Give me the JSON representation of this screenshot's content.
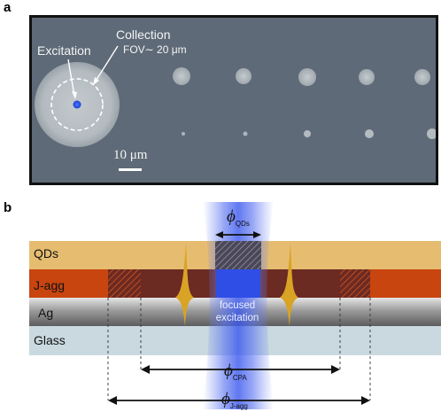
{
  "panel_a": {
    "label": "a",
    "excitation": "Excitation",
    "collection": "Collection",
    "fov": "FOV∼ 20 μm",
    "scale_bar": "10 μm"
  },
  "panel_b": {
    "label": "b",
    "layers": [
      "QDs",
      "J-agg",
      "Ag",
      "Glass"
    ],
    "beam_text_line1": "focused",
    "beam_text_line2": "excitation",
    "phi_symbol": "ϕ",
    "phi_qds_sub": "QDs",
    "phi_cpa_sub": "CPA",
    "phi_jagg_sub": "J-agg"
  },
  "colors": {
    "qds_layer": "#e6bd70",
    "jagg_layer": "#c8450f",
    "jagg_disk": "#6b2a22",
    "ag_layer": "#9a9a9a",
    "glass_layer": "#c9d9df",
    "beam": "#3a5cf0",
    "plasmon": "#d9a326"
  }
}
